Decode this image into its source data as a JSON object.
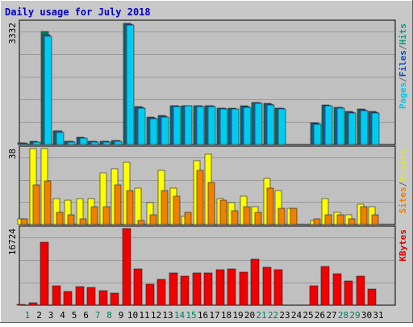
{
  "chart_data": {
    "type": "bar",
    "title": "Daily usage for July 2018",
    "days": [
      "1",
      "2",
      "3",
      "4",
      "5",
      "6",
      "7",
      "8",
      "9",
      "10",
      "11",
      "12",
      "13",
      "14",
      "15",
      "16",
      "17",
      "18",
      "19",
      "20",
      "21",
      "22",
      "23",
      "24",
      "25",
      "26",
      "27",
      "28",
      "29",
      "30",
      "31"
    ],
    "weekend_days": [
      1,
      7,
      8,
      14,
      15,
      21,
      22,
      28,
      29
    ],
    "panels": [
      {
        "id": "pages-files-hits",
        "max_label": "3332",
        "max": 3332,
        "side_labels": [
          "Pages",
          "/",
          "Files",
          "/",
          "Hits"
        ],
        "side_label_colors": [
          "#00c8e8",
          "#666666",
          "#0050c8",
          "#666666",
          "#00a080"
        ],
        "series": [
          {
            "name": "Hits",
            "color": "#00805c",
            "values": [
              40,
              80,
              3080,
              380,
              90,
              190,
              90,
              90,
              120,
              3320,
              1040,
              740,
              800,
              1070,
              1070,
              1070,
              1060,
              1000,
              990,
              1050,
              1150,
              1120,
              1000,
              0,
              0,
              590,
              1080,
              1020,
              900,
              960,
              900
            ]
          },
          {
            "name": "Files",
            "color": "#2c62d0",
            "values": [
              36,
              75,
              3000,
              370,
              85,
              185,
              85,
              85,
              115,
              3280,
              1020,
              720,
              780,
              1060,
              1060,
              1060,
              1050,
              990,
              980,
              1040,
              1140,
              1110,
              990,
              0,
              0,
              580,
              1070,
              1010,
              890,
              950,
              890
            ]
          },
          {
            "name": "Pages",
            "color": "#00ccf0",
            "values": [
              30,
              60,
              2960,
              340,
              70,
              170,
              70,
              70,
              90,
              3260,
              1000,
              700,
              760,
              1040,
              1050,
              1040,
              1030,
              970,
              960,
              1020,
              1120,
              1090,
              970,
              0,
              0,
              560,
              1050,
              990,
              870,
              930,
              870
            ]
          }
        ]
      },
      {
        "id": "visits-sites",
        "max_label": "38",
        "max": 38,
        "side_labels": [
          "Sites",
          "/",
          "Visits"
        ],
        "side_label_colors": [
          "#f08000",
          "#666666",
          "#e8e800"
        ],
        "series": [
          {
            "name": "Visits",
            "color": "#ffff00",
            "values": [
              3,
              38,
              38,
              13,
              12,
              13,
              13,
              26,
              28,
              31,
              18,
              11,
              27,
              18,
              4,
              32,
              35,
              13,
              11,
              14,
              9,
              23,
              17,
              8,
              0,
              2,
              13,
              6,
              5,
              10,
              9
            ]
          },
          {
            "name": "Sites",
            "color": "#f08000",
            "values": [
              3,
              20,
              22,
              6,
              5,
              3,
              9,
              9,
              20,
              17,
              2,
              5,
              17,
              14,
              6,
              27,
              21,
              12,
              7,
              9,
              6,
              18,
              8,
              8,
              0,
              3,
              5,
              5,
              3,
              9,
              5
            ]
          }
        ]
      },
      {
        "id": "kbytes",
        "max_label": "16724",
        "max": 16724,
        "side_labels": [
          "KBytes"
        ],
        "side_label_colors": [
          "#e00000"
        ],
        "series": [
          {
            "name": "KBytes",
            "color": "#f00000",
            "values": [
              200,
              600,
              13700,
              4200,
              3000,
              4000,
              3800,
              3100,
              2700,
              16724,
              8000,
              4500,
              5600,
              7000,
              6400,
              7000,
              7000,
              7700,
              7900,
              7200,
              10000,
              8200,
              7800,
              0,
              0,
              4300,
              8400,
              6800,
              5300,
              6400,
              3600
            ]
          }
        ]
      }
    ]
  }
}
